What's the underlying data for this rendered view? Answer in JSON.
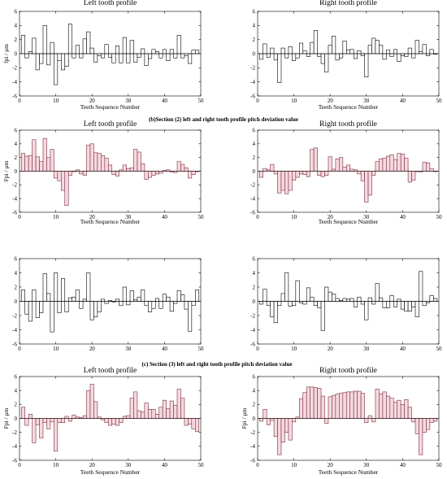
{
  "captions": [
    "(b)Section (2) left and right tooth profile pitch deviation value",
    "(c) Section (3) left and right tooth profile pitch deviation value"
  ],
  "chart_data": [
    {
      "type": "bar",
      "title": "Left tooth profile",
      "xlabel": "Teeth Sequence Number",
      "ylabel": "fpi / μm",
      "xlim": [
        0,
        50
      ],
      "ylim": [
        -6,
        6
      ],
      "xticks": [
        0,
        10,
        20,
        30,
        40,
        50
      ],
      "yticks": [
        -6,
        -4,
        -2,
        0,
        2,
        4,
        6
      ],
      "bar_color": "#ffffff",
      "edge_color": "#000000",
      "x": [
        1,
        2,
        3,
        4,
        5,
        6,
        7,
        8,
        9,
        10,
        11,
        12,
        13,
        14,
        15,
        16,
        17,
        18,
        19,
        20,
        21,
        22,
        23,
        24,
        25,
        26,
        27,
        28,
        29,
        30,
        31,
        32,
        33,
        34,
        35,
        36,
        37,
        38,
        39,
        40,
        41,
        42,
        43,
        44,
        45,
        46,
        47,
        48,
        49
      ],
      "values": [
        2.6,
        -0.6,
        0.3,
        2.2,
        -2.3,
        -1.4,
        4.0,
        -1.6,
        1.6,
        -4.4,
        -1.0,
        -2.3,
        -1.8,
        4.2,
        -0.6,
        1.2,
        -0.6,
        2.1,
        3.1,
        0.8,
        -1.2,
        -0.3,
        -0.6,
        1.3,
        -0.5,
        -1.3,
        1.1,
        -1.3,
        2.3,
        -1.3,
        1.9,
        -1.2,
        -0.5,
        0.7,
        -1.7,
        -0.7,
        0.6,
        0.3,
        -0.6,
        0.6,
        -1.0,
        0.6,
        -0.6,
        2.6,
        -0.6,
        -0.3,
        -1.4,
        0.5,
        0.5
      ]
    },
    {
      "type": "bar",
      "title": "Right tooth profile",
      "xlabel": "Teeth Sequence Number",
      "ylabel": "",
      "xlim": [
        0,
        50
      ],
      "ylim": [
        -6,
        6
      ],
      "xticks": [
        0,
        10,
        20,
        30,
        40,
        50
      ],
      "yticks": [
        -6,
        -4,
        -2,
        0,
        2,
        4,
        6
      ],
      "bar_color": "#ffffff",
      "edge_color": "#000000",
      "x": [
        1,
        2,
        3,
        4,
        5,
        6,
        7,
        8,
        9,
        10,
        11,
        12,
        13,
        14,
        15,
        16,
        17,
        18,
        19,
        20,
        21,
        22,
        23,
        24,
        25,
        26,
        27,
        28,
        29,
        30,
        31,
        32,
        33,
        34,
        35,
        36,
        37,
        38,
        39,
        40,
        41,
        42,
        43,
        44,
        45,
        46,
        47,
        48,
        49
      ],
      "values": [
        -0.8,
        1.4,
        -0.5,
        0.8,
        -0.9,
        -4.1,
        0.8,
        -0.6,
        1.0,
        -1.0,
        -0.6,
        1.5,
        0.4,
        -0.4,
        1.6,
        3.3,
        -0.4,
        -1.4,
        -2.6,
        1.2,
        2.5,
        -0.9,
        -0.6,
        1.8,
        0.5,
        0.6,
        -0.7,
        0.4,
        -0.3,
        -3.3,
        1.2,
        2.2,
        1.9,
        1.2,
        -0.8,
        0.5,
        -0.4,
        0.6,
        -1.1,
        -0.3,
        -0.4,
        0.8,
        -0.6,
        1.9,
        0.3,
        1.3,
        -0.3,
        0.6,
        0.0
      ]
    },
    {
      "type": "bar",
      "title": "Left tooth profile",
      "xlabel": "Teeth Sequence Number",
      "ylabel": "Fpi / μm",
      "xlim": [
        0,
        50
      ],
      "ylim": [
        -6,
        6
      ],
      "xticks": [
        0,
        10,
        20,
        30,
        40,
        50
      ],
      "yticks": [
        -6,
        -4,
        -2,
        0,
        2,
        4,
        6
      ],
      "bar_color": "#f6d9e0",
      "edge_color": "#7a2c3c",
      "x": [
        1,
        2,
        3,
        4,
        5,
        6,
        7,
        8,
        9,
        10,
        11,
        12,
        13,
        14,
        15,
        16,
        17,
        18,
        19,
        20,
        21,
        22,
        23,
        24,
        25,
        26,
        27,
        28,
        29,
        30,
        31,
        32,
        33,
        34,
        35,
        36,
        37,
        38,
        39,
        40,
        41,
        42,
        43,
        44,
        45,
        46,
        47,
        48,
        49
      ],
      "values": [
        2.6,
        2.2,
        2.3,
        4.6,
        2.1,
        1.4,
        4.8,
        2.0,
        3.2,
        -1.0,
        -1.4,
        -2.8,
        -5.0,
        -0.6,
        0.0,
        0.2,
        -0.4,
        -0.6,
        3.8,
        4.0,
        2.7,
        2.6,
        2.3,
        1.9,
        0.9,
        -0.5,
        -0.7,
        0.2,
        0.9,
        0.4,
        0.5,
        3.2,
        2.8,
        1.1,
        -1.2,
        -0.9,
        -0.6,
        -0.4,
        -0.3,
        0.1,
        0.2,
        -0.1,
        -0.2,
        1.4,
        1.0,
        0.5,
        -1.0,
        -0.5,
        0.0
      ]
    },
    {
      "type": "bar",
      "title": "Right tooth profile",
      "xlabel": "Teeth Sequence Number",
      "ylabel": "",
      "xlim": [
        0,
        50
      ],
      "ylim": [
        -6,
        6
      ],
      "xticks": [
        0,
        10,
        20,
        30,
        40,
        50
      ],
      "yticks": [
        -6,
        -4,
        -2,
        0,
        2,
        4,
        6
      ],
      "bar_color": "#f6d9e0",
      "edge_color": "#7a2c3c",
      "x": [
        1,
        2,
        3,
        4,
        5,
        6,
        7,
        8,
        9,
        10,
        11,
        12,
        13,
        14,
        15,
        16,
        17,
        18,
        19,
        20,
        21,
        22,
        23,
        24,
        25,
        26,
        27,
        28,
        29,
        30,
        31,
        32,
        33,
        34,
        35,
        36,
        37,
        38,
        39,
        40,
        41,
        42,
        43,
        44,
        45,
        46,
        47,
        48,
        49
      ],
      "values": [
        -0.9,
        0.4,
        0.2,
        1.0,
        -0.4,
        -3.2,
        -2.8,
        -3.3,
        -2.8,
        -1.3,
        -0.9,
        -0.4,
        -0.5,
        -0.8,
        3.2,
        3.4,
        -0.6,
        -0.8,
        -0.6,
        2.1,
        0.3,
        1.8,
        2.0,
        0.6,
        0.9,
        0.3,
        0.2,
        -0.4,
        -1.4,
        -4.5,
        -3.5,
        -0.6,
        1.4,
        1.8,
        1.9,
        2.2,
        2.4,
        1.7,
        2.6,
        2.5,
        1.9,
        -1.6,
        -1.3,
        0.0,
        -0.1,
        1.3,
        1.2,
        0.4,
        0.0
      ]
    },
    {
      "type": "bar",
      "title": "Left tooth profile",
      "xlabel": "",
      "ylabel": "",
      "xlim": [
        0,
        50
      ],
      "ylim": [
        -6,
        6
      ],
      "xticks": [
        0,
        10,
        20,
        30,
        40,
        50
      ],
      "yticks": [
        -6,
        -4,
        -2,
        0,
        2,
        4,
        6
      ],
      "bar_color": "#ffffff",
      "edge_color": "#000000",
      "x": [
        1,
        2,
        3,
        4,
        5,
        6,
        7,
        8,
        9,
        10,
        11,
        12,
        13,
        14,
        15,
        16,
        17,
        18,
        19,
        20,
        21,
        22,
        23,
        24,
        25,
        26,
        27,
        28,
        29,
        30,
        31,
        32,
        33,
        34,
        35,
        36,
        37,
        38,
        39,
        40,
        41,
        42,
        43,
        44,
        45,
        46,
        47,
        48,
        49
      ],
      "values": [
        1.6,
        -1.8,
        -2.8,
        1.6,
        -2.3,
        -1.6,
        3.9,
        1.1,
        -4.3,
        4.0,
        -1.6,
        3.2,
        -1.5,
        0.5,
        0.6,
        1.6,
        -1.0,
        0.3,
        4.0,
        -2.6,
        -2.2,
        -1.5,
        0.3,
        -0.3,
        0.1,
        -0.1,
        0.3,
        -0.6,
        2.0,
        -0.5,
        1.5,
        0.2,
        0.6,
        1.6,
        -0.6,
        -1.5,
        -1.0,
        0.4,
        -1.0,
        1.0,
        0.6,
        -1.4,
        -0.3,
        1.5,
        0.9,
        -1.1,
        -4.2,
        -0.6,
        1.6
      ]
    },
    {
      "type": "bar",
      "title": "Right tooth profile",
      "xlabel": "",
      "ylabel": "",
      "xlim": [
        0,
        50
      ],
      "ylim": [
        -6,
        6
      ],
      "xticks": [
        0,
        10,
        20,
        30,
        40,
        50
      ],
      "yticks": [
        -6,
        -4,
        -2,
        0,
        2,
        4,
        6
      ],
      "bar_color": "#ffffff",
      "edge_color": "#000000",
      "x": [
        1,
        2,
        3,
        4,
        5,
        6,
        7,
        8,
        9,
        10,
        11,
        12,
        13,
        14,
        15,
        16,
        17,
        18,
        19,
        20,
        21,
        22,
        23,
        24,
        25,
        26,
        27,
        28,
        29,
        30,
        31,
        32,
        33,
        34,
        35,
        36,
        37,
        38,
        39,
        40,
        41,
        42,
        43,
        44,
        45,
        46,
        47,
        48,
        49
      ],
      "values": [
        -0.4,
        1.7,
        -0.6,
        -2.2,
        -3.0,
        -0.6,
        1.1,
        4.0,
        -0.7,
        -0.6,
        2.9,
        -0.2,
        -0.4,
        1.9,
        0.6,
        -0.6,
        -0.9,
        -4.1,
        2.0,
        1.3,
        1.0,
        0.4,
        0.1,
        0.4,
        0.3,
        0.4,
        -0.8,
        0.6,
        -0.4,
        -2.6,
        0.5,
        -0.4,
        2.5,
        0.5,
        -0.9,
        -0.9,
        0.8,
        -0.8,
        0.3,
        -1.1,
        -1.4,
        -1.4,
        -0.8,
        -2.2,
        4.2,
        -0.6,
        -0.2,
        0.8,
        0.4
      ]
    },
    {
      "type": "bar",
      "title": "Left tooth profile",
      "xlabel": "Teeth Sequence Number",
      "ylabel": "Fpi / μm",
      "xlim": [
        0,
        50
      ],
      "ylim": [
        -6,
        6
      ],
      "xticks": [
        0,
        10,
        20,
        30,
        40,
        50
      ],
      "yticks": [
        -6,
        -4,
        -2,
        0,
        2,
        4,
        6
      ],
      "bar_color": "#f6d9e0",
      "edge_color": "#7a2c3c",
      "x": [
        1,
        2,
        3,
        4,
        5,
        6,
        7,
        8,
        9,
        10,
        11,
        12,
        13,
        14,
        15,
        16,
        17,
        18,
        19,
        20,
        21,
        22,
        23,
        24,
        25,
        26,
        27,
        28,
        29,
        30,
        31,
        32,
        33,
        34,
        35,
        36,
        37,
        38,
        39,
        40,
        41,
        42,
        43,
        44,
        45,
        46,
        47,
        48,
        49
      ],
      "values": [
        1.6,
        -1.0,
        0.6,
        -3.5,
        -0.9,
        -2.8,
        -0.6,
        -1.5,
        -0.5,
        -4.7,
        -0.6,
        -0.6,
        0.3,
        -0.4,
        0.5,
        0.2,
        0.1,
        0.4,
        4.0,
        4.9,
        2.4,
        0.2,
        -0.2,
        -0.6,
        -1.0,
        -0.8,
        -1.0,
        -0.6,
        0.3,
        0.4,
        2.9,
        3.8,
        1.1,
        0.9,
        2.2,
        1.3,
        1.3,
        0.6,
        1.6,
        2.6,
        1.4,
        2.5,
        1.9,
        4.2,
        2.9,
        -1.0,
        -0.8,
        -1.5,
        -1.9
      ]
    },
    {
      "type": "bar",
      "title": "Right tooth profile",
      "xlabel": "Teeth Sequence Number",
      "ylabel": "Fpi / μm",
      "xlim": [
        0,
        50
      ],
      "ylim": [
        -6,
        6
      ],
      "xticks": [
        0,
        10,
        20,
        30,
        40,
        50
      ],
      "yticks": [
        -6,
        -4,
        -2,
        0,
        2,
        4,
        6
      ],
      "bar_color": "#f6d9e0",
      "edge_color": "#7a2c3c",
      "x": [
        1,
        2,
        3,
        4,
        5,
        6,
        7,
        8,
        9,
        10,
        11,
        12,
        13,
        14,
        15,
        16,
        17,
        18,
        19,
        20,
        21,
        22,
        23,
        24,
        25,
        26,
        27,
        28,
        29,
        30,
        31,
        32,
        33,
        34,
        35,
        36,
        37,
        38,
        39,
        40,
        41,
        42,
        43,
        44,
        45,
        46,
        47,
        48,
        49
      ],
      "values": [
        -0.4,
        1.3,
        -0.9,
        -0.3,
        -2.6,
        -5.2,
        -3.4,
        -2.0,
        -3.1,
        -0.5,
        0.2,
        2.8,
        3.7,
        4.5,
        4.5,
        4.4,
        4.3,
        3.2,
        -0.7,
        3.1,
        3.3,
        3.5,
        3.6,
        3.7,
        3.8,
        3.8,
        3.9,
        3.9,
        3.6,
        -0.6,
        0.4,
        -0.5,
        4.2,
        3.5,
        3.8,
        3.2,
        2.9,
        2.3,
        2.6,
        2.0,
        2.7,
        1.6,
        -0.5,
        -2.2,
        -5.2,
        -2.0,
        -1.6,
        -0.6,
        -0.4
      ]
    }
  ]
}
